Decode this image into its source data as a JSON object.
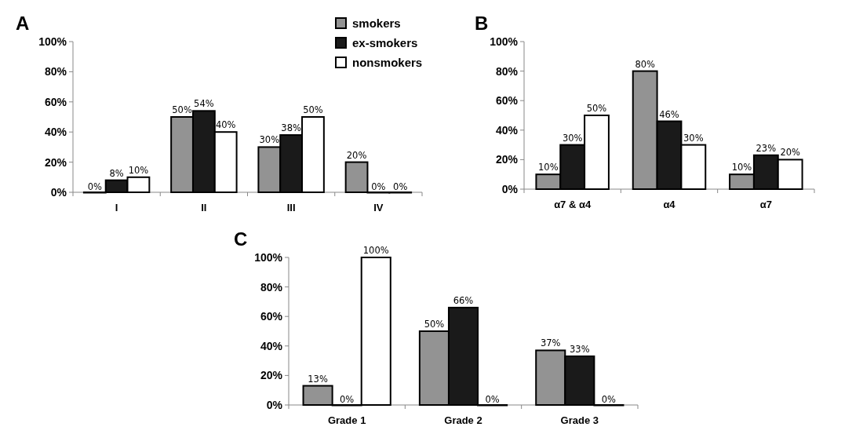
{
  "chart_data": [
    {
      "type": "bar",
      "title": "A",
      "categories": [
        "I",
        "II",
        "III",
        "IV"
      ],
      "ylim": [
        0,
        100
      ],
      "yticks": [
        {
          "value": 0,
          "label": "0%"
        },
        {
          "value": 20,
          "label": "20%"
        },
        {
          "value": 40,
          "label": "40%"
        },
        {
          "value": 60,
          "label": "60%"
        },
        {
          "value": 80,
          "label": "80%"
        },
        {
          "value": 100,
          "label": "100%"
        }
      ],
      "legend": "top right",
      "series": [
        {
          "name": "smokers",
          "color": "#939393",
          "values": [
            0,
            50,
            30,
            20
          ],
          "value_labels": [
            "0%",
            "50%",
            "30%",
            "20%"
          ]
        },
        {
          "name": "ex-smokers",
          "color": "#1a1a1a",
          "values": [
            8,
            54,
            38,
            0
          ],
          "value_labels": [
            "8%",
            "54%",
            "38%",
            "0%"
          ]
        },
        {
          "name": "nonsmokers",
          "color": "#ffffff",
          "values": [
            10,
            40,
            50,
            0
          ],
          "value_labels": [
            "10%",
            "40%",
            "50%",
            "0%"
          ]
        }
      ]
    },
    {
      "type": "bar",
      "title": "B",
      "categories": [
        "α7 & α4",
        "α4",
        "α7"
      ],
      "ylim": [
        0,
        100
      ],
      "yticks": [
        {
          "value": 0,
          "label": "0%"
        },
        {
          "value": 20,
          "label": "20%"
        },
        {
          "value": 40,
          "label": "40%"
        },
        {
          "value": 60,
          "label": "60%"
        },
        {
          "value": 80,
          "label": "80%"
        },
        {
          "value": 100,
          "label": "100%"
        }
      ],
      "series": [
        {
          "color": "#939393",
          "values": [
            10,
            80,
            10
          ],
          "value_labels": [
            "10%",
            "80%",
            "10%"
          ]
        },
        {
          "color": "#1a1a1a",
          "values": [
            30,
            46,
            23
          ],
          "value_labels": [
            "30%",
            "46%",
            "23%"
          ]
        },
        {
          "color": "#ffffff",
          "values": [
            50,
            30,
            20
          ],
          "value_labels": [
            "50%",
            "30%",
            "20%"
          ]
        }
      ]
    },
    {
      "type": "bar",
      "title": "C",
      "categories": [
        "Grade 1",
        "Grade 2",
        "Grade 3"
      ],
      "ylim": [
        0,
        100
      ],
      "yticks": [
        {
          "value": 0,
          "label": "0%"
        },
        {
          "value": 20,
          "label": "20%"
        },
        {
          "value": 40,
          "label": "40%"
        },
        {
          "value": 60,
          "label": "60%"
        },
        {
          "value": 80,
          "label": "80%"
        },
        {
          "value": 100,
          "label": "100%"
        }
      ],
      "series": [
        {
          "color": "#939393",
          "values": [
            13,
            50,
            37
          ],
          "value_labels": [
            "13%",
            "50%",
            "37%"
          ]
        },
        {
          "color": "#1a1a1a",
          "values": [
            0,
            66,
            33
          ],
          "value_labels": [
            "0%",
            "66%",
            "33%"
          ]
        },
        {
          "color": "#ffffff",
          "values": [
            100,
            0,
            0
          ],
          "value_labels": [
            "100%",
            "0%",
            "0%"
          ]
        }
      ]
    }
  ]
}
